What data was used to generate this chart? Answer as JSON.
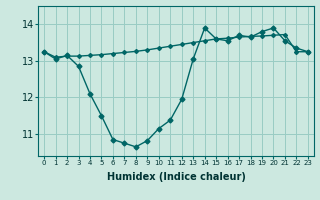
{
  "xlabel": "Humidex (Indice chaleur)",
  "background_color": "#cce8e0",
  "grid_color": "#99ccc4",
  "line_color": "#006666",
  "x_ticks": [
    0,
    1,
    2,
    3,
    4,
    5,
    6,
    7,
    8,
    9,
    10,
    11,
    12,
    13,
    14,
    15,
    16,
    17,
    18,
    19,
    20,
    21,
    22,
    23
  ],
  "y_ticks": [
    11,
    12,
    13,
    14
  ],
  "ylim": [
    10.4,
    14.5
  ],
  "xlim": [
    -0.5,
    23.5
  ],
  "series1_x": [
    0,
    1,
    2,
    3,
    4,
    5,
    6,
    7,
    8,
    9,
    10,
    11,
    12,
    13,
    14,
    15,
    16,
    17,
    18,
    19,
    20,
    21,
    22,
    23
  ],
  "series1_y": [
    13.25,
    13.05,
    13.15,
    12.85,
    12.1,
    11.5,
    10.85,
    10.75,
    10.65,
    10.82,
    11.15,
    11.38,
    11.95,
    13.05,
    13.9,
    13.6,
    13.55,
    13.7,
    13.65,
    13.8,
    13.9,
    13.55,
    13.35,
    13.25
  ],
  "series2_x": [
    0,
    1,
    2,
    3,
    4,
    5,
    6,
    7,
    8,
    9,
    10,
    11,
    12,
    13,
    14,
    15,
    16,
    17,
    18,
    19,
    20,
    21,
    22,
    23
  ],
  "series2_y": [
    13.25,
    13.1,
    13.13,
    13.13,
    13.15,
    13.17,
    13.2,
    13.23,
    13.26,
    13.3,
    13.35,
    13.4,
    13.45,
    13.5,
    13.55,
    13.6,
    13.62,
    13.65,
    13.67,
    13.68,
    13.7,
    13.72,
    13.25,
    13.25
  ]
}
